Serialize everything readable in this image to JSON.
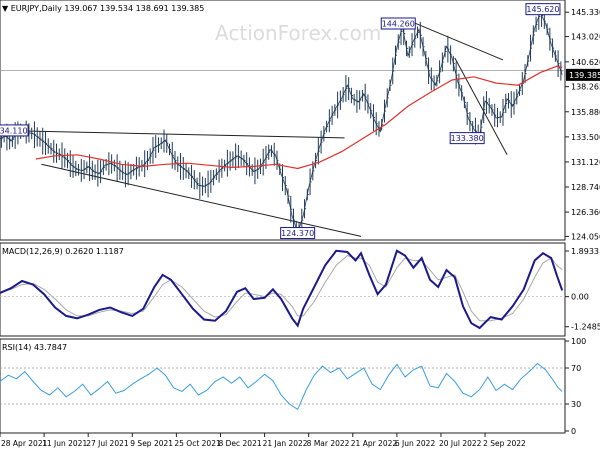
{
  "chart_data": [
    {
      "type": "line",
      "panel": "price",
      "title": "EURJPY,Daily",
      "ohlc_values": "139.067 139.534 138.691 139.385",
      "watermark": "ActionForex.com",
      "y_ticks": [
        "145.330",
        "143.020",
        "140.620",
        "138.265",
        "135.880",
        "133.500",
        "131.120",
        "128.740",
        "126.360",
        "124.050"
      ],
      "ylim": [
        123.9,
        146.3
      ],
      "last_price_label": "139.385",
      "last_price": 139.385,
      "price_series": [
        [
          0,
          133.3
        ],
        [
          4,
          133.6
        ],
        [
          8,
          133.1
        ],
        [
          12,
          133.8
        ],
        [
          16,
          134.1
        ],
        [
          20,
          133.9
        ],
        [
          24,
          133.8
        ],
        [
          28,
          133.4
        ],
        [
          32,
          133.0
        ],
        [
          36,
          132.5
        ],
        [
          40,
          132.0
        ],
        [
          44,
          131.8
        ],
        [
          48,
          131.4
        ],
        [
          52,
          130.8
        ],
        [
          56,
          130.4
        ],
        [
          60,
          130.3
        ],
        [
          64,
          130.7
        ],
        [
          68,
          130.2
        ],
        [
          72,
          130.0
        ],
        [
          76,
          130.8
        ],
        [
          80,
          131.0
        ],
        [
          84,
          130.7
        ],
        [
          88,
          130.2
        ],
        [
          92,
          129.9
        ],
        [
          96,
          130.3
        ],
        [
          100,
          130.6
        ],
        [
          104,
          130.8
        ],
        [
          108,
          131.4
        ],
        [
          112,
          132.5
        ],
        [
          116,
          132.8
        ],
        [
          120,
          133.2
        ],
        [
          124,
          132.0
        ],
        [
          128,
          131.0
        ],
        [
          132,
          130.6
        ],
        [
          136,
          130.2
        ],
        [
          140,
          129.6
        ],
        [
          144,
          128.9
        ],
        [
          148,
          128.8
        ],
        [
          152,
          129.1
        ],
        [
          156,
          129.8
        ],
        [
          160,
          130.4
        ],
        [
          164,
          130.9
        ],
        [
          168,
          131.3
        ],
        [
          172,
          131.7
        ],
        [
          176,
          131.4
        ],
        [
          180,
          130.8
        ],
        [
          184,
          130.2
        ],
        [
          188,
          130.5
        ],
        [
          192,
          131.3
        ],
        [
          196,
          132.3
        ],
        [
          200,
          131.7
        ],
        [
          204,
          130.0
        ],
        [
          208,
          128.5
        ],
        [
          212,
          126.0
        ],
        [
          216,
          124.4
        ],
        [
          220,
          126.0
        ],
        [
          224,
          128.7
        ],
        [
          228,
          130.8
        ],
        [
          232,
          132.6
        ],
        [
          236,
          134.2
        ],
        [
          240,
          135.3
        ],
        [
          244,
          136.3
        ],
        [
          248,
          137.2
        ],
        [
          252,
          138.4
        ],
        [
          256,
          137.1
        ],
        [
          260,
          136.8
        ],
        [
          264,
          137.6
        ],
        [
          268,
          136.3
        ],
        [
          272,
          135.0
        ],
        [
          276,
          134.0
        ],
        [
          280,
          136.6
        ],
        [
          284,
          139.0
        ],
        [
          288,
          142.0
        ],
        [
          292,
          144.0
        ],
        [
          296,
          141.2
        ],
        [
          300,
          142.6
        ],
        [
          304,
          143.7
        ],
        [
          308,
          141.5
        ],
        [
          312,
          139.2
        ],
        [
          316,
          138.4
        ],
        [
          320,
          140.1
        ],
        [
          324,
          142.1
        ],
        [
          328,
          141.0
        ],
        [
          332,
          138.8
        ],
        [
          336,
          137.3
        ],
        [
          340,
          135.2
        ],
        [
          344,
          134.2
        ],
        [
          348,
          133.6
        ],
        [
          352,
          136.9
        ],
        [
          356,
          136.3
        ],
        [
          360,
          135.3
        ],
        [
          364,
          135.4
        ],
        [
          368,
          137.1
        ],
        [
          372,
          136.4
        ],
        [
          376,
          137.6
        ],
        [
          380,
          138.9
        ],
        [
          384,
          141.3
        ],
        [
          388,
          143.8
        ],
        [
          392,
          145.3
        ],
        [
          396,
          144.2
        ],
        [
          400,
          142.3
        ],
        [
          404,
          140.8
        ],
        [
          408,
          139.4
        ]
      ],
      "ma_series": [
        [
          26,
          131.4
        ],
        [
          40,
          131.7
        ],
        [
          56,
          131.8
        ],
        [
          72,
          131.4
        ],
        [
          88,
          130.9
        ],
        [
          104,
          130.7
        ],
        [
          120,
          130.9
        ],
        [
          136,
          131.0
        ],
        [
          152,
          130.8
        ],
        [
          168,
          130.6
        ],
        [
          184,
          130.7
        ],
        [
          200,
          130.9
        ],
        [
          216,
          130.5
        ],
        [
          232,
          131.1
        ],
        [
          248,
          132.1
        ],
        [
          264,
          133.4
        ],
        [
          280,
          134.7
        ],
        [
          296,
          136.4
        ],
        [
          312,
          137.7
        ],
        [
          328,
          138.9
        ],
        [
          344,
          139.2
        ],
        [
          360,
          138.6
        ],
        [
          376,
          138.4
        ],
        [
          392,
          139.6
        ],
        [
          404,
          140.2
        ],
        [
          408,
          140.1
        ]
      ],
      "annotations": [
        {
          "label": "134.110",
          "x": 8,
          "value": 134.11
        },
        {
          "label": "144.260",
          "x": 289,
          "value": 144.26
        },
        {
          "label": "145.620",
          "x": 394,
          "value": 145.62
        },
        {
          "label": "133.380",
          "x": 339,
          "value": 133.38
        },
        {
          "label": "124.370",
          "x": 216,
          "value": 124.37
        }
      ],
      "trendlines": [
        [
          [
            2,
            134.1
          ],
          [
            250,
            133.4
          ]
        ],
        [
          [
            30,
            130.9
          ],
          [
            262,
            124.05
          ]
        ],
        [
          [
            301,
            144.3
          ],
          [
            365,
            140.8
          ]
        ],
        [
          [
            330,
            141.0
          ],
          [
            368,
            131.8
          ]
        ]
      ],
      "hline": 139.8
    },
    {
      "type": "line",
      "panel": "macd",
      "title": "MACD(12,26,9) 0.2620 1.1187",
      "y_ticks": [
        "1.8933",
        "0.00",
        "-1.2485"
      ],
      "ylim": [
        -1.55,
        2.1
      ],
      "macd_series": [
        [
          0,
          0.15
        ],
        [
          8,
          0.35
        ],
        [
          16,
          0.65
        ],
        [
          24,
          0.5
        ],
        [
          32,
          0.1
        ],
        [
          40,
          -0.45
        ],
        [
          48,
          -0.8
        ],
        [
          56,
          -0.9
        ],
        [
          64,
          -0.75
        ],
        [
          72,
          -0.55
        ],
        [
          80,
          -0.45
        ],
        [
          88,
          -0.65
        ],
        [
          96,
          -0.8
        ],
        [
          104,
          -0.5
        ],
        [
          112,
          0.4
        ],
        [
          118,
          0.9
        ],
        [
          124,
          0.7
        ],
        [
          132,
          0.1
        ],
        [
          140,
          -0.5
        ],
        [
          148,
          -0.95
        ],
        [
          156,
          -1.0
        ],
        [
          164,
          -0.6
        ],
        [
          172,
          0.2
        ],
        [
          178,
          0.35
        ],
        [
          184,
          -0.1
        ],
        [
          192,
          -0.05
        ],
        [
          198,
          0.3
        ],
        [
          204,
          -0.1
        ],
        [
          212,
          -0.9
        ],
        [
          216,
          -1.2
        ],
        [
          220,
          -0.5
        ],
        [
          228,
          0.4
        ],
        [
          236,
          1.3
        ],
        [
          244,
          1.9
        ],
        [
          252,
          1.85
        ],
        [
          258,
          1.5
        ],
        [
          262,
          1.8
        ],
        [
          268,
          0.9
        ],
        [
          274,
          0.1
        ],
        [
          280,
          0.5
        ],
        [
          288,
          1.9
        ],
        [
          294,
          1.7
        ],
        [
          300,
          1.2
        ],
        [
          306,
          1.6
        ],
        [
          312,
          0.7
        ],
        [
          318,
          0.4
        ],
        [
          324,
          1.1
        ],
        [
          330,
          0.8
        ],
        [
          336,
          -0.4
        ],
        [
          342,
          -1.1
        ],
        [
          348,
          -1.3
        ],
        [
          356,
          -0.85
        ],
        [
          364,
          -0.95
        ],
        [
          372,
          -0.4
        ],
        [
          380,
          0.3
        ],
        [
          388,
          1.5
        ],
        [
          394,
          1.8
        ],
        [
          400,
          1.6
        ],
        [
          404,
          0.9
        ],
        [
          408,
          0.26
        ]
      ],
      "signal_series": [
        [
          0,
          0.2
        ],
        [
          8,
          0.3
        ],
        [
          16,
          0.5
        ],
        [
          24,
          0.55
        ],
        [
          32,
          0.3
        ],
        [
          40,
          -0.1
        ],
        [
          48,
          -0.55
        ],
        [
          56,
          -0.8
        ],
        [
          64,
          -0.8
        ],
        [
          72,
          -0.65
        ],
        [
          80,
          -0.55
        ],
        [
          88,
          -0.6
        ],
        [
          96,
          -0.7
        ],
        [
          104,
          -0.6
        ],
        [
          112,
          0.0
        ],
        [
          118,
          0.5
        ],
        [
          124,
          0.7
        ],
        [
          132,
          0.4
        ],
        [
          140,
          -0.1
        ],
        [
          148,
          -0.6
        ],
        [
          156,
          -0.85
        ],
        [
          164,
          -0.75
        ],
        [
          172,
          -0.2
        ],
        [
          178,
          0.15
        ],
        [
          184,
          0.1
        ],
        [
          192,
          0.0
        ],
        [
          198,
          0.15
        ],
        [
          204,
          0.1
        ],
        [
          212,
          -0.4
        ],
        [
          216,
          -0.8
        ],
        [
          220,
          -0.8
        ],
        [
          228,
          -0.2
        ],
        [
          236,
          0.6
        ],
        [
          244,
          1.3
        ],
        [
          252,
          1.7
        ],
        [
          258,
          1.6
        ],
        [
          262,
          1.6
        ],
        [
          268,
          1.3
        ],
        [
          274,
          0.6
        ],
        [
          280,
          0.4
        ],
        [
          288,
          1.2
        ],
        [
          294,
          1.6
        ],
        [
          300,
          1.5
        ],
        [
          306,
          1.5
        ],
        [
          312,
          1.1
        ],
        [
          318,
          0.7
        ],
        [
          324,
          0.8
        ],
        [
          330,
          0.9
        ],
        [
          336,
          0.2
        ],
        [
          342,
          -0.6
        ],
        [
          348,
          -1.0
        ],
        [
          356,
          -1.0
        ],
        [
          364,
          -0.9
        ],
        [
          372,
          -0.7
        ],
        [
          380,
          -0.1
        ],
        [
          388,
          0.8
        ],
        [
          394,
          1.4
        ],
        [
          400,
          1.6
        ],
        [
          404,
          1.3
        ],
        [
          408,
          1.12
        ]
      ]
    },
    {
      "type": "line",
      "panel": "rsi",
      "title": "RSI(14) 43.7847",
      "y_ticks": [
        "100",
        "70",
        "30",
        "0"
      ],
      "ylim": [
        0,
        100
      ],
      "levels": [
        70,
        30
      ],
      "rsi_series": [
        [
          0,
          55
        ],
        [
          6,
          62
        ],
        [
          12,
          58
        ],
        [
          18,
          66
        ],
        [
          24,
          55
        ],
        [
          30,
          45
        ],
        [
          36,
          40
        ],
        [
          42,
          48
        ],
        [
          48,
          38
        ],
        [
          54,
          44
        ],
        [
          60,
          52
        ],
        [
          66,
          40
        ],
        [
          72,
          47
        ],
        [
          78,
          55
        ],
        [
          84,
          42
        ],
        [
          90,
          45
        ],
        [
          96,
          52
        ],
        [
          102,
          58
        ],
        [
          108,
          63
        ],
        [
          114,
          70
        ],
        [
          120,
          62
        ],
        [
          126,
          48
        ],
        [
          132,
          44
        ],
        [
          138,
          52
        ],
        [
          144,
          40
        ],
        [
          150,
          45
        ],
        [
          156,
          55
        ],
        [
          162,
          60
        ],
        [
          168,
          53
        ],
        [
          174,
          60
        ],
        [
          180,
          48
        ],
        [
          186,
          55
        ],
        [
          192,
          63
        ],
        [
          198,
          56
        ],
        [
          204,
          40
        ],
        [
          210,
          30
        ],
        [
          216,
          24
        ],
        [
          222,
          45
        ],
        [
          228,
          62
        ],
        [
          234,
          72
        ],
        [
          240,
          65
        ],
        [
          246,
          70
        ],
        [
          252,
          58
        ],
        [
          258,
          64
        ],
        [
          264,
          70
        ],
        [
          270,
          52
        ],
        [
          276,
          46
        ],
        [
          282,
          62
        ],
        [
          288,
          74
        ],
        [
          294,
          60
        ],
        [
          300,
          68
        ],
        [
          306,
          72
        ],
        [
          312,
          50
        ],
        [
          318,
          48
        ],
        [
          324,
          64
        ],
        [
          330,
          55
        ],
        [
          336,
          42
        ],
        [
          342,
          38
        ],
        [
          348,
          46
        ],
        [
          354,
          60
        ],
        [
          360,
          45
        ],
        [
          366,
          52
        ],
        [
          372,
          46
        ],
        [
          378,
          58
        ],
        [
          384,
          66
        ],
        [
          390,
          75
        ],
        [
          396,
          68
        ],
        [
          402,
          55
        ],
        [
          405,
          48
        ],
        [
          408,
          44
        ]
      ]
    }
  ],
  "x_axis": {
    "labels": [
      "28 Apr 2021",
      "11 Jun 2021",
      "27 Jul 2021",
      "9 Sep 2021",
      "25 Oct 2021",
      "8 Dec 2021",
      "21 Jan 2022",
      "8 Mar 2022",
      "21 Apr 2022",
      "6 Jun 2022",
      "20 Jul 2022",
      "2 Sep 2022"
    ],
    "index": [
      0,
      32,
      64,
      96,
      128,
      160,
      192,
      224,
      256,
      288,
      320,
      352
    ],
    "domain": [
      0,
      410
    ]
  },
  "colors": {
    "price": "#1f3a57",
    "ma": "#e0322c",
    "macd": "#1a1a8c",
    "signal": "#a8a8a8",
    "rsi": "#3b9fe0",
    "box": "#1a1a8c",
    "grid": "#888888"
  }
}
